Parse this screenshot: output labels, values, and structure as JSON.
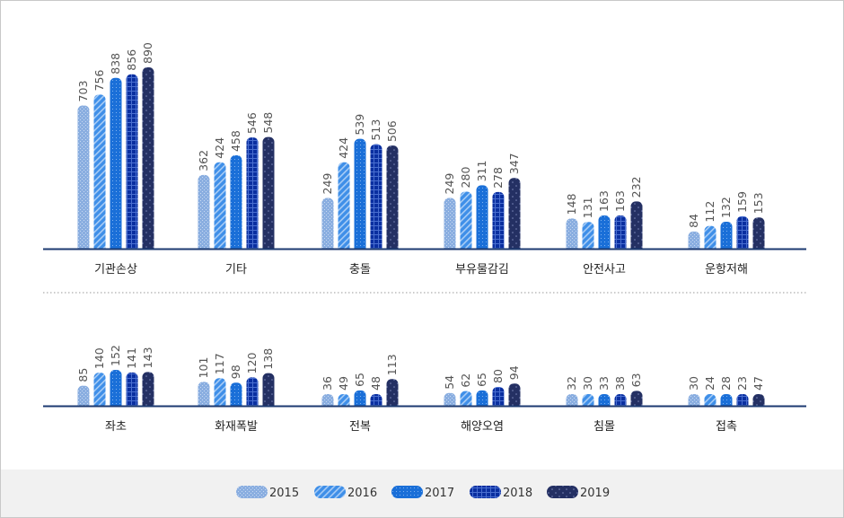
{
  "colors": {
    "series": [
      "#8aaee0",
      "#3f8fe8",
      "#1a6fd8",
      "#0a2fa0",
      "#243063"
    ],
    "axis": "#1c3a70"
  },
  "chart_data": [
    {
      "type": "bar",
      "categories": [
        "기관손상",
        "기타",
        "충돌",
        "부유물감김",
        "안전사고",
        "운항저해"
      ],
      "series": [
        {
          "name": "2015",
          "values": [
            703,
            362,
            249,
            249,
            148,
            84
          ]
        },
        {
          "name": "2016",
          "values": [
            756,
            424,
            424,
            280,
            131,
            112
          ]
        },
        {
          "name": "2017",
          "values": [
            838,
            458,
            539,
            311,
            163,
            132
          ]
        },
        {
          "name": "2018",
          "values": [
            856,
            546,
            513,
            278,
            163,
            159
          ]
        },
        {
          "name": "2019",
          "values": [
            890,
            548,
            506,
            347,
            232,
            153
          ]
        }
      ],
      "ylim": [
        0,
        890
      ],
      "legend": "bottom"
    },
    {
      "type": "bar",
      "categories": [
        "좌초",
        "화재폭발",
        "전복",
        "해양오염",
        "침몰",
        "접촉"
      ],
      "series": [
        {
          "name": "2015",
          "values": [
            85,
            101,
            36,
            54,
            32,
            30
          ]
        },
        {
          "name": "2016",
          "values": [
            140,
            117,
            49,
            62,
            30,
            24
          ]
        },
        {
          "name": "2017",
          "values": [
            152,
            98,
            65,
            65,
            33,
            28
          ]
        },
        {
          "name": "2018",
          "values": [
            141,
            120,
            48,
            80,
            38,
            23
          ]
        },
        {
          "name": "2019",
          "values": [
            143,
            138,
            113,
            94,
            63,
            47
          ]
        }
      ],
      "ylim": [
        0,
        152
      ],
      "legend": "bottom"
    }
  ]
}
